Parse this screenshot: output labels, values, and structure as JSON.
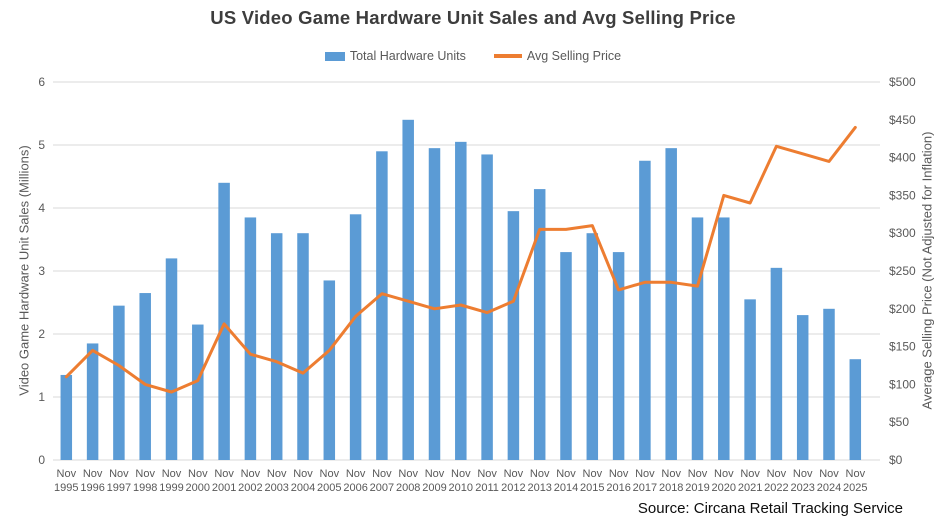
{
  "chart_data": {
    "type": "combo-bar-line",
    "title": "US Video Game Hardware Unit Sales and Avg Selling Price",
    "source": "Source: Circana Retail Tracking Service",
    "legend_position": "top-center",
    "grid": true,
    "x_month_label": "Nov",
    "categories": [
      "1995",
      "1996",
      "1997",
      "1998",
      "1999",
      "2000",
      "2001",
      "2002",
      "2003",
      "2004",
      "2005",
      "2006",
      "2007",
      "2008",
      "2009",
      "2010",
      "2011",
      "2012",
      "2013",
      "2014",
      "2015",
      "2016",
      "2017",
      "2018",
      "2019",
      "2020",
      "2021",
      "2022",
      "2023",
      "2024",
      "2025"
    ],
    "left_axis": {
      "label": "Video Game Hardware Unit Sales (Millions)",
      "min": 0,
      "max": 6,
      "step": 1
    },
    "right_axis": {
      "label": "Average Selling Price (Not Adjusted for Inflation)",
      "min": 0,
      "max": 500,
      "step": 50,
      "prefix": "$"
    },
    "series": [
      {
        "name": "Total Hardware Units",
        "type": "bar",
        "axis": "left",
        "color": "#5B9BD5",
        "values": [
          1.35,
          1.85,
          2.45,
          2.65,
          3.2,
          2.15,
          4.4,
          3.85,
          3.6,
          3.6,
          2.85,
          3.9,
          4.9,
          5.4,
          4.95,
          5.05,
          4.85,
          3.95,
          4.3,
          3.3,
          3.6,
          3.3,
          4.75,
          4.95,
          3.85,
          3.85,
          2.55,
          3.05,
          2.3,
          2.4,
          1.6
        ]
      },
      {
        "name": "Avg Selling Price",
        "type": "line",
        "axis": "right",
        "color": "#ED7D31",
        "values": [
          110,
          145,
          125,
          100,
          90,
          105,
          180,
          140,
          130,
          115,
          145,
          190,
          220,
          210,
          200,
          205,
          195,
          210,
          305,
          305,
          310,
          225,
          235,
          235,
          230,
          350,
          340,
          415,
          405,
          395,
          440
        ]
      }
    ],
    "colors": {
      "grid": "#D9D9D9",
      "axis_text": "#595959",
      "title_text": "#3D3D3D",
      "source_text": "#0D0D0D"
    }
  }
}
